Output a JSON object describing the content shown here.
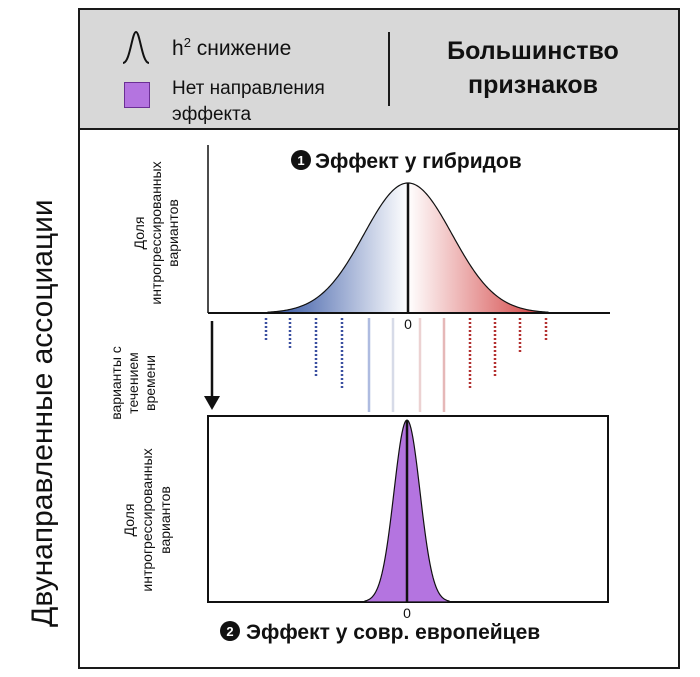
{
  "side_title": "Двунаправленные ассоциации",
  "legend": {
    "h2_symbol": "h",
    "h2_superscript": "2",
    "h2_label": "снижение",
    "no_direction_label_line1": "Нет направления",
    "no_direction_label_line2": "эффекта",
    "no_direction_color": "#b474e0",
    "curve_icon": "bell-curve-icon"
  },
  "trait_scope": {
    "line1": "Большинство",
    "line2": "признаков"
  },
  "panel_top": {
    "marker": "1",
    "title": "Эффект у гибридов",
    "ylabel_line1": "Доля",
    "ylabel_line2": "интрогрессированных",
    "ylabel_line3": "вариантов",
    "zero_label": "0",
    "negative_color": "#2d4fa0",
    "positive_color": "#d13a3a"
  },
  "time_arrow": {
    "line1": "варианты с",
    "line2": "течением",
    "line3": "времени",
    "icon": "down-arrow-icon"
  },
  "panel_bottom": {
    "marker": "2",
    "title": "Эффект у совр. европейцев",
    "ylabel_line1": "Доля",
    "ylabel_line2": "интрогрессированных",
    "ylabel_line3": "вариантов",
    "zero_label": "0",
    "fill_color": "#b474e0"
  }
}
